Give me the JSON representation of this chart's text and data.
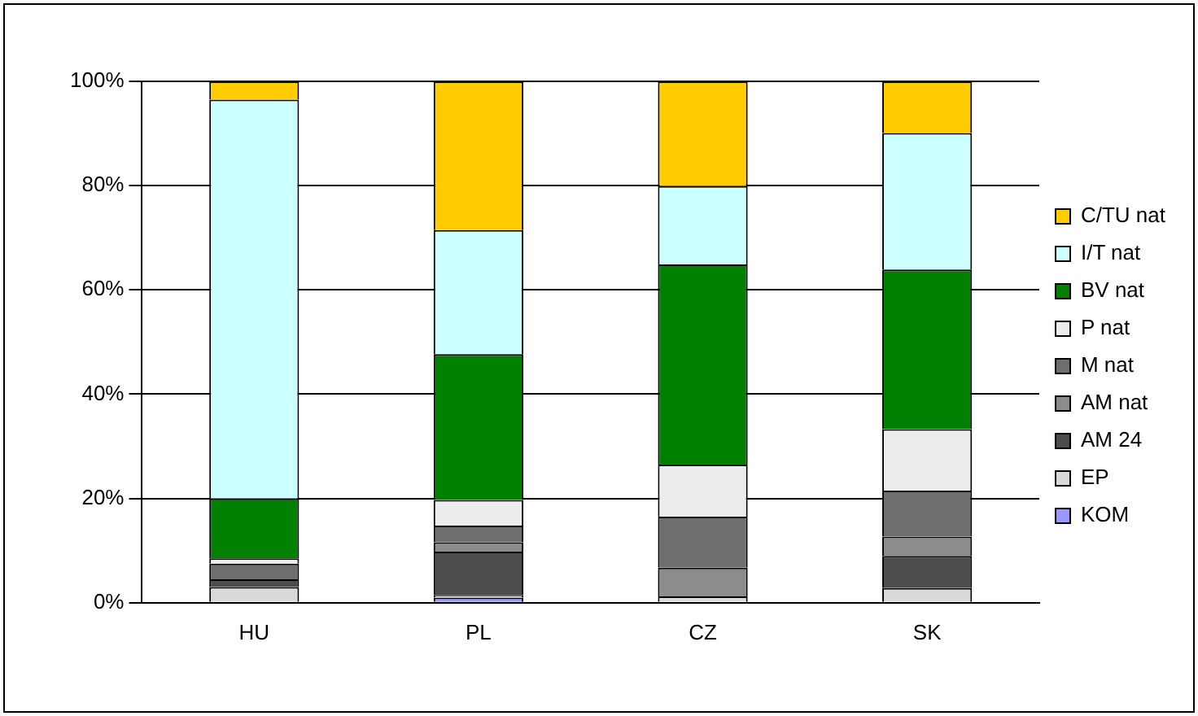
{
  "chart_data": {
    "type": "bar",
    "stacked": true,
    "categories": [
      "HU",
      "PL",
      "CZ",
      "SK"
    ],
    "series": [
      {
        "name": "KOM",
        "color": "#9999ff",
        "values": [
          0,
          1,
          0,
          0
        ]
      },
      {
        "name": "EP",
        "color": "#d9d9d9",
        "values": [
          3,
          0.5,
          1.2,
          2.8
        ]
      },
      {
        "name": "AM 24",
        "color": "#4d4d4d",
        "values": [
          1.5,
          8.3,
          0,
          6.2
        ]
      },
      {
        "name": "AM nat",
        "color": "#8c8c8c",
        "values": [
          0,
          1.8,
          5.5,
          3.7
        ]
      },
      {
        "name": "M nat",
        "color": "#6e6e6e",
        "values": [
          3,
          3.2,
          9.8,
          8.8
        ]
      },
      {
        "name": "P nat",
        "color": "#ececec",
        "values": [
          1,
          4.9,
          10,
          11.8
        ]
      },
      {
        "name": "BV nat",
        "color": "#008000",
        "values": [
          11.5,
          28,
          38.4,
          30.6
        ]
      },
      {
        "name": "I/T nat",
        "color": "#ccffff",
        "values": [
          76.5,
          23.8,
          15,
          26.2
        ]
      },
      {
        "name": "C/TU nat",
        "color": "#ffcc00",
        "values": [
          3.5,
          28.5,
          20.1,
          9.9
        ]
      }
    ],
    "ylim": [
      0,
      100
    ],
    "yticks": [
      {
        "value": 0,
        "label": "0%"
      },
      {
        "value": 20,
        "label": "20%"
      },
      {
        "value": 40,
        "label": "40%"
      },
      {
        "value": 60,
        "label": "60%"
      },
      {
        "value": 80,
        "label": "80%"
      },
      {
        "value": 100,
        "label": "100%"
      }
    ],
    "grid": "y",
    "legend": "right"
  }
}
